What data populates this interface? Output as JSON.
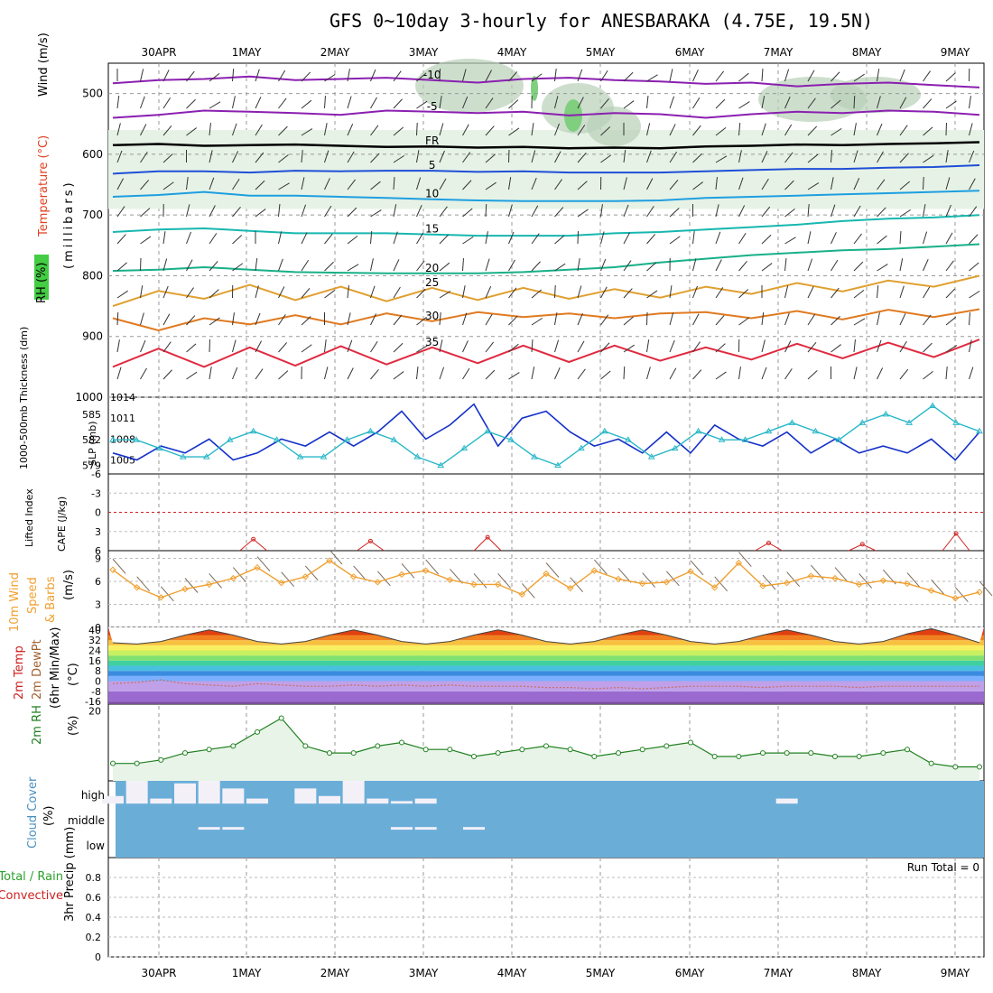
{
  "title": "GFS 0~10day 3-hourly for ANESBARAKA (4.75E, 19.5N)",
  "x_labels": [
    "30APR",
    "1MAY",
    "2MAY",
    "3MAY",
    "4MAY",
    "5MAY",
    "6MAY",
    "7MAY",
    "8MAY",
    "9MAY"
  ],
  "colors": {
    "temp_minus10": "#8a1fb0",
    "temp_minus5": "#8a1fb0",
    "temp_fr": "#000000",
    "temp_5": "#1f4fd6",
    "temp_10": "#1e9fe0",
    "temp_15": "#17b7b0",
    "temp_20": "#18b088",
    "temp_25": "#e0a030",
    "temp_30": "#e07a20",
    "temp_35": "#e02a40",
    "rh_fill": "#7fcf7f",
    "slp_line": "#1430c8",
    "thickness_line": "#2ab8c8",
    "lifted_line": "#d02020",
    "wind_line": "#f0a030",
    "rh2m_line": "#208020",
    "cloud_fill": "#6aaed8"
  },
  "chart_data": [
    {
      "type": "line",
      "panel": "upper_air",
      "ylabel": "(millibars)",
      "side_labels": [
        "Wind (m/s)",
        "Temperature (°C)",
        "RH (%)"
      ],
      "ylim": [
        1000,
        450
      ],
      "y_ticks": [
        500,
        600,
        700,
        800,
        900,
        1000
      ],
      "series": [
        {
          "name": "-10",
          "pressure": [
            483,
            478,
            476,
            472,
            478,
            476,
            474,
            478,
            482,
            476,
            474,
            478,
            480,
            484,
            482,
            488,
            484,
            482,
            486,
            490
          ]
        },
        {
          "name": "-5",
          "pressure": [
            540,
            535,
            528,
            530,
            532,
            535,
            528,
            530,
            532,
            530,
            536,
            532,
            534,
            540,
            534,
            530,
            532,
            528,
            530,
            535
          ]
        },
        {
          "name": "FR",
          "pressure": [
            585,
            583,
            586,
            585,
            584,
            586,
            588,
            587,
            589,
            588,
            590,
            589,
            590,
            587,
            586,
            584,
            585,
            583,
            582,
            580
          ]
        },
        {
          "name": "5",
          "pressure": [
            632,
            628,
            628,
            630,
            627,
            628,
            627,
            627,
            629,
            628,
            630,
            630,
            630,
            628,
            626,
            624,
            624,
            622,
            621,
            618
          ]
        },
        {
          "name": "10",
          "pressure": [
            670,
            667,
            662,
            668,
            668,
            670,
            672,
            674,
            676,
            677,
            677,
            677,
            676,
            672,
            670,
            668,
            666,
            664,
            662,
            660
          ]
        },
        {
          "name": "15",
          "pressure": [
            728,
            724,
            722,
            726,
            730,
            730,
            730,
            732,
            734,
            734,
            734,
            730,
            728,
            724,
            720,
            716,
            710,
            706,
            704,
            700
          ]
        },
        {
          "name": "20",
          "pressure": [
            792,
            790,
            786,
            790,
            794,
            795,
            796,
            796,
            796,
            794,
            790,
            786,
            778,
            772,
            766,
            762,
            758,
            756,
            752,
            748
          ]
        },
        {
          "name": "25",
          "pressure": [
            850,
            825,
            838,
            815,
            840,
            818,
            842,
            820,
            840,
            820,
            838,
            822,
            836,
            818,
            830,
            812,
            826,
            808,
            818,
            800
          ]
        },
        {
          "name": "30",
          "pressure": [
            870,
            890,
            870,
            880,
            865,
            880,
            862,
            875,
            860,
            868,
            862,
            870,
            862,
            860,
            870,
            858,
            872,
            856,
            868,
            855
          ]
        },
        {
          "name": "35",
          "pressure": [
            950,
            920,
            950,
            918,
            948,
            916,
            946,
            918,
            944,
            915,
            942,
            915,
            940,
            918,
            938,
            912,
            936,
            910,
            934,
            905
          ]
        }
      ],
      "contour_labels": [
        "-10",
        "-5",
        "FR",
        "5",
        "10",
        "15",
        "20",
        "25",
        "30",
        "30"
      ]
    },
    {
      "type": "line",
      "panel": "slp_thickness",
      "ylabel_left": "1000-500mb Thickness (dm)",
      "ylabel_right": "SLP (mb)",
      "left_ticks": [
        579,
        582,
        585
      ],
      "right_ticks": [
        1005,
        1008,
        1011,
        1014
      ],
      "left_lim": [
        578,
        587
      ],
      "right_lim": [
        1003,
        1014
      ],
      "series": [
        {
          "name": "SLP",
          "values": [
            1006,
            1005,
            1007,
            1006,
            1008,
            1005,
            1006,
            1008,
            1007,
            1009,
            1007,
            1009,
            1012,
            1008,
            1010,
            1013,
            1007,
            1011,
            1012,
            1009,
            1007,
            1008,
            1006,
            1009,
            1006,
            1010,
            1008,
            1007,
            1009,
            1006,
            1008,
            1006,
            1007,
            1006,
            1008,
            1005,
            1009
          ]
        },
        {
          "name": "Thickness",
          "values": [
            582,
            582,
            581,
            580,
            580,
            582,
            583,
            582,
            580,
            580,
            582,
            583,
            582,
            580,
            579,
            581,
            583,
            582,
            580,
            579,
            581,
            583,
            582,
            580,
            581,
            583,
            582,
            582,
            583,
            584,
            583,
            582,
            584,
            585,
            584,
            586,
            584,
            583
          ]
        }
      ]
    },
    {
      "type": "line",
      "panel": "stability",
      "ylabel": "Lifted Index",
      "ylabel2": "CAPE (J/kg)",
      "ylim": [
        -6,
        6
      ],
      "y_ticks": [
        -6,
        -3,
        0,
        3,
        6
      ],
      "y_tick_labels": [
        "-6",
        "-3",
        "0",
        "3",
        "6"
      ],
      "series": [
        {
          "name": "Lifted Index",
          "values": [
            6.5,
            6.5,
            6.5,
            6.5,
            6.5,
            6.5,
            4.2,
            6.5,
            6.5,
            6.5,
            6.5,
            4.5,
            6.5,
            6.5,
            6.5,
            6.5,
            3.9,
            6.5,
            6.5,
            6.5,
            6.5,
            6.5,
            6.5,
            6.5,
            6.5,
            6.5,
            6.5,
            6.5,
            4.8,
            6.5,
            6.5,
            6.5,
            5.0,
            6.5,
            6.5,
            6.5,
            3.3,
            6.5
          ]
        }
      ]
    },
    {
      "type": "line",
      "panel": "wind10m",
      "ylabel": "10m Wind Speed & Barbs (m/s)",
      "ylim": [
        0,
        10
      ],
      "y_ticks": [
        0,
        3,
        6,
        9
      ],
      "series": [
        {
          "name": "10m Wind Speed",
          "values": [
            7.5,
            5.2,
            3.9,
            5.0,
            5.6,
            6.4,
            7.8,
            5.8,
            6.6,
            8.7,
            6.6,
            5.9,
            6.9,
            7.4,
            6.2,
            5.6,
            5.6,
            4.3,
            7.0,
            5.1,
            7.4,
            6.3,
            5.7,
            5.9,
            7.3,
            5.2,
            8.4,
            5.4,
            5.8,
            6.7,
            6.4,
            5.6,
            6.1,
            5.7,
            4.8,
            3.8,
            4.6
          ]
        }
      ]
    },
    {
      "type": "area",
      "panel": "temp2m",
      "ylabel": "2m Temp 2m DewPt (6hr Min/Max) (°C)",
      "ylim": [
        -18,
        42
      ],
      "y_ticks": [
        -16,
        -8,
        0,
        8,
        16,
        24,
        32,
        40
      ],
      "y_tick_labels": [
        "-16",
        "-8",
        "0",
        "8",
        "16",
        "24",
        "32",
        "40"
      ],
      "series": [
        {
          "name": "2m Temp",
          "values": [
            30,
            29,
            31,
            36,
            40,
            36,
            31,
            29,
            31,
            36,
            40,
            36,
            31,
            29,
            31,
            36,
            40,
            36,
            31,
            29,
            31,
            36,
            40,
            36,
            31,
            29,
            31,
            36,
            40,
            36,
            31,
            29,
            31,
            37,
            41,
            36,
            30
          ]
        },
        {
          "name": "2m DewPt",
          "values": [
            -2,
            -1,
            1,
            -2,
            -3,
            -4,
            -2,
            -3,
            -4,
            -4,
            -3,
            -4,
            -3,
            -4,
            -3,
            -4,
            -4,
            -4,
            -5,
            -5,
            -6,
            -5,
            -6,
            -5,
            -4,
            -4,
            -4,
            -5,
            -4,
            -4,
            -4,
            -5,
            -4,
            -4,
            -4,
            -4,
            -4
          ]
        }
      ]
    },
    {
      "type": "area",
      "panel": "rh2m",
      "ylabel": "2m RH (%)",
      "ylim": [
        0,
        22
      ],
      "y_ticks": [
        20
      ],
      "series": [
        {
          "name": "2m RH",
          "values": [
            5,
            5,
            6,
            8,
            9,
            10,
            14,
            18,
            10,
            8,
            8,
            10,
            11,
            9,
            9,
            7,
            8,
            9,
            10,
            9,
            7,
            8,
            9,
            10,
            11,
            7,
            7,
            8,
            8,
            8,
            7,
            7,
            8,
            9,
            5,
            4,
            4
          ]
        }
      ]
    },
    {
      "type": "table",
      "panel": "cloud",
      "ylabel": "Cloud Cover (%)",
      "levels": [
        "high",
        "middle",
        "low"
      ],
      "series": [
        {
          "name": "high",
          "values": [
            30,
            90,
            20,
            80,
            90,
            60,
            20,
            0,
            60,
            30,
            90,
            20,
            10,
            20,
            0,
            0,
            0,
            0,
            0,
            0,
            0,
            0,
            0,
            0,
            0,
            0,
            0,
            0,
            20,
            0,
            0,
            0,
            0,
            0,
            0,
            0,
            0
          ]
        },
        {
          "name": "middle",
          "values": [
            0,
            0,
            0,
            0,
            10,
            10,
            0,
            0,
            0,
            0,
            0,
            0,
            10,
            10,
            0,
            10,
            0,
            0,
            0,
            0,
            0,
            0,
            0,
            0,
            0,
            0,
            0,
            0,
            0,
            0,
            0,
            0,
            0,
            0,
            0,
            0,
            0
          ]
        }
      ]
    },
    {
      "type": "line",
      "panel": "precip",
      "ylabel": "3hr Precip (mm)",
      "ylabel2": "Total / Rain",
      "ylabel3": "Convective",
      "run_total": "Run Total = 0",
      "ylim": [
        0,
        1
      ],
      "y_ticks": [
        0,
        0.2,
        0.4,
        0.6,
        0.8
      ],
      "y_tick_labels": [
        "0",
        "0.2",
        "0.4",
        "0.6",
        "0.8"
      ],
      "series": [
        {
          "name": "Total",
          "values": [
            0,
            0,
            0,
            0,
            0,
            0,
            0,
            0,
            0,
            0
          ]
        }
      ]
    }
  ]
}
